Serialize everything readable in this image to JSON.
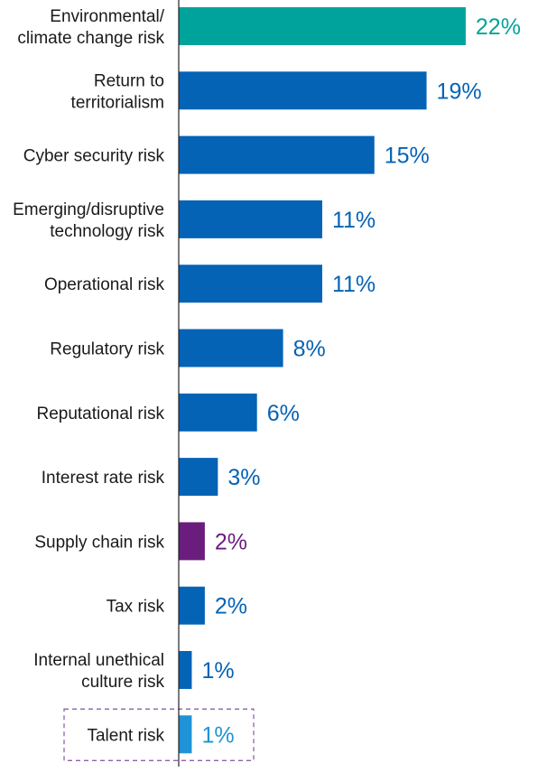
{
  "chart_data": {
    "type": "bar",
    "orientation": "horizontal",
    "categories": [
      [
        "Environmental/",
        "climate change risk"
      ],
      [
        "Return to",
        "territorialism"
      ],
      [
        "Cyber security risk"
      ],
      [
        "Emerging/disruptive",
        "technology risk"
      ],
      [
        "Operational risk"
      ],
      [
        "Regulatory risk"
      ],
      [
        "Reputational risk"
      ],
      [
        "Interest rate risk"
      ],
      [
        "Supply chain risk"
      ],
      [
        "Tax risk"
      ],
      [
        "Internal unethical",
        "culture risk"
      ],
      [
        "Talent risk"
      ]
    ],
    "values": [
      22,
      19,
      15,
      11,
      11,
      8,
      6,
      3,
      2,
      2,
      1,
      1
    ],
    "value_labels": [
      "22%",
      "19%",
      "15%",
      "11%",
      "11%",
      "8%",
      "6%",
      "3%",
      "2%",
      "2%",
      "1%",
      "1%"
    ],
    "bar_colors": [
      "#00a39b",
      "#0563b6",
      "#0563b6",
      "#0563b6",
      "#0563b6",
      "#0563b6",
      "#0563b6",
      "#0563b6",
      "#6b1d7d",
      "#0563b6",
      "#0563b6",
      "#1e93d6"
    ],
    "highlight_box_index": 11,
    "highlight_box_color": "#8c63a6",
    "axis_color": "#222222",
    "xlim": [
      0,
      22
    ]
  }
}
